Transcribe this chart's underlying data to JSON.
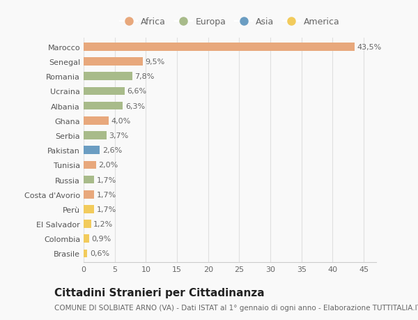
{
  "countries": [
    "Marocco",
    "Senegal",
    "Romania",
    "Ucraina",
    "Albania",
    "Ghana",
    "Serbia",
    "Pakistan",
    "Tunisia",
    "Russia",
    "Costa d'Avorio",
    "Perù",
    "El Salvador",
    "Colombia",
    "Brasile"
  ],
  "values": [
    43.5,
    9.5,
    7.8,
    6.6,
    6.3,
    4.0,
    3.7,
    2.6,
    2.0,
    1.7,
    1.7,
    1.7,
    1.2,
    0.9,
    0.6
  ],
  "labels": [
    "43,5%",
    "9,5%",
    "7,8%",
    "6,6%",
    "6,3%",
    "4,0%",
    "3,7%",
    "2,6%",
    "2,0%",
    "1,7%",
    "1,7%",
    "1,7%",
    "1,2%",
    "0,9%",
    "0,6%"
  ],
  "continents": [
    "Africa",
    "Africa",
    "Europa",
    "Europa",
    "Europa",
    "Africa",
    "Europa",
    "Asia",
    "Africa",
    "Europa",
    "Africa",
    "America",
    "America",
    "America",
    "America"
  ],
  "colors": {
    "Africa": "#E8A87C",
    "Europa": "#A8BB8A",
    "Asia": "#6B9DC2",
    "America": "#F2CB5C"
  },
  "legend_order": [
    "Africa",
    "Europa",
    "Asia",
    "America"
  ],
  "xlim": [
    0,
    47
  ],
  "xticks": [
    0,
    5,
    10,
    15,
    20,
    25,
    30,
    35,
    40,
    45
  ],
  "bg_color": "#f9f9f9",
  "grid_color": "#e0e0e0",
  "bar_height": 0.55,
  "label_fontsize": 8,
  "tick_fontsize": 8,
  "title": "Cittadini Stranieri per Cittadinanza",
  "subtitle": "COMUNE DI SOLBIATE ARNO (VA) - Dati ISTAT al 1° gennaio di ogni anno - Elaborazione TUTTITALIA.IT",
  "title_fontsize": 11,
  "subtitle_fontsize": 7.5
}
